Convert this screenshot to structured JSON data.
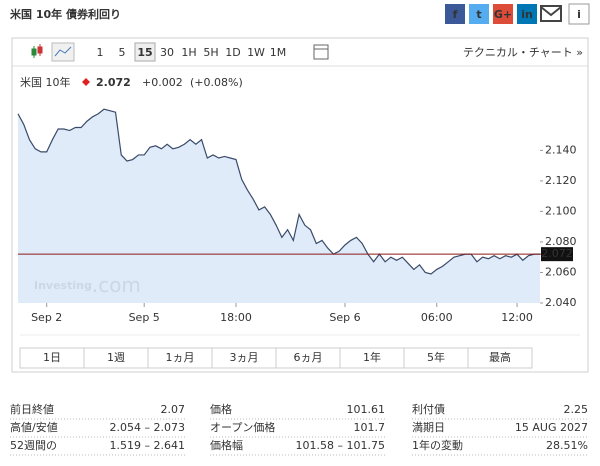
{
  "header": {
    "title": "米国 10年 債券利回り",
    "share": [
      "f",
      "t",
      "G+",
      "in",
      "i"
    ]
  },
  "toolbar": {
    "intervals": [
      "1",
      "5",
      "15",
      "30",
      "1H",
      "5H",
      "1D",
      "1W",
      "1M"
    ],
    "selected": "15",
    "technical_link": "テクニカル・チャート »"
  },
  "quote": {
    "name": "米国 10年",
    "price": "2.072",
    "change": "+0.002",
    "change_pct": "(+0.08%)"
  },
  "chart_data": {
    "type": "area",
    "color": "#3a4a6a",
    "fill": "#dbe9f8",
    "values": [
      2.164,
      2.157,
      2.147,
      2.141,
      2.139,
      2.139,
      2.147,
      2.154,
      2.154,
      2.153,
      2.155,
      2.155,
      2.159,
      2.162,
      2.164,
      2.167,
      2.166,
      2.165,
      2.137,
      2.133,
      2.134,
      2.137,
      2.137,
      2.142,
      2.143,
      2.141,
      2.144,
      2.141,
      2.142,
      2.144,
      2.147,
      2.144,
      2.147,
      2.135,
      2.137,
      2.135,
      2.136,
      2.135,
      2.134,
      2.121,
      2.114,
      2.108,
      2.101,
      2.103,
      2.098,
      2.091,
      2.083,
      2.088,
      2.081,
      2.098,
      2.091,
      2.088,
      2.079,
      2.081,
      2.076,
      2.072,
      2.074,
      2.078,
      2.081,
      2.083,
      2.079,
      2.072,
      2.067,
      2.072,
      2.067,
      2.07,
      2.068,
      2.07,
      2.066,
      2.062,
      2.065,
      2.06,
      2.059,
      2.062,
      2.064,
      2.067,
      2.07,
      2.071,
      2.072,
      2.072,
      2.067,
      2.07,
      2.069,
      2.071,
      2.069,
      2.071,
      2.07,
      2.072,
      2.068,
      2.071,
      2.072,
      2.072
    ],
    "xlim": [
      0,
      91
    ],
    "xticks": [
      {
        "value": 5,
        "label": "Sep 2"
      },
      {
        "value": 22,
        "label": "Sep 5"
      },
      {
        "value": 38,
        "label": "18:00"
      },
      {
        "value": 57,
        "label": "Sep 6"
      },
      {
        "value": 73,
        "label": "06:00"
      },
      {
        "value": 87,
        "label": "12:00"
      }
    ],
    "ylim": [
      2.04,
      2.173
    ],
    "yticks": [
      {
        "value": 2.04,
        "label": "2.040"
      },
      {
        "value": 2.06,
        "label": "2.060"
      },
      {
        "value": 2.08,
        "label": "2.080"
      },
      {
        "value": 2.1,
        "label": "2.100"
      },
      {
        "value": 2.12,
        "label": "2.120"
      },
      {
        "value": 2.14,
        "label": "2.140"
      }
    ],
    "price_line": {
      "value": 2.072,
      "label": "2.072"
    },
    "watermark": [
      "Investing",
      ".com"
    ]
  },
  "ranges": [
    "1日",
    "1週",
    "1ヵ月",
    "3ヵ月",
    "6ヵ月",
    "1年",
    "5年",
    "最高"
  ],
  "stats": [
    [
      [
        "前日終値",
        "2.07"
      ],
      [
        "価格",
        "101.61"
      ],
      [
        "利付債",
        "2.25"
      ]
    ],
    [
      [
        "高値/安値",
        "2.054 – 2.073"
      ],
      [
        "オープン価格",
        "101.7"
      ],
      [
        "満期日",
        "15 AUG 2027"
      ]
    ],
    [
      [
        "52週間の",
        "1.519 – 2.641"
      ],
      [
        "価格幅",
        "101.58 – 101.75"
      ],
      [
        "1年の変動",
        "28.51%"
      ]
    ]
  ]
}
